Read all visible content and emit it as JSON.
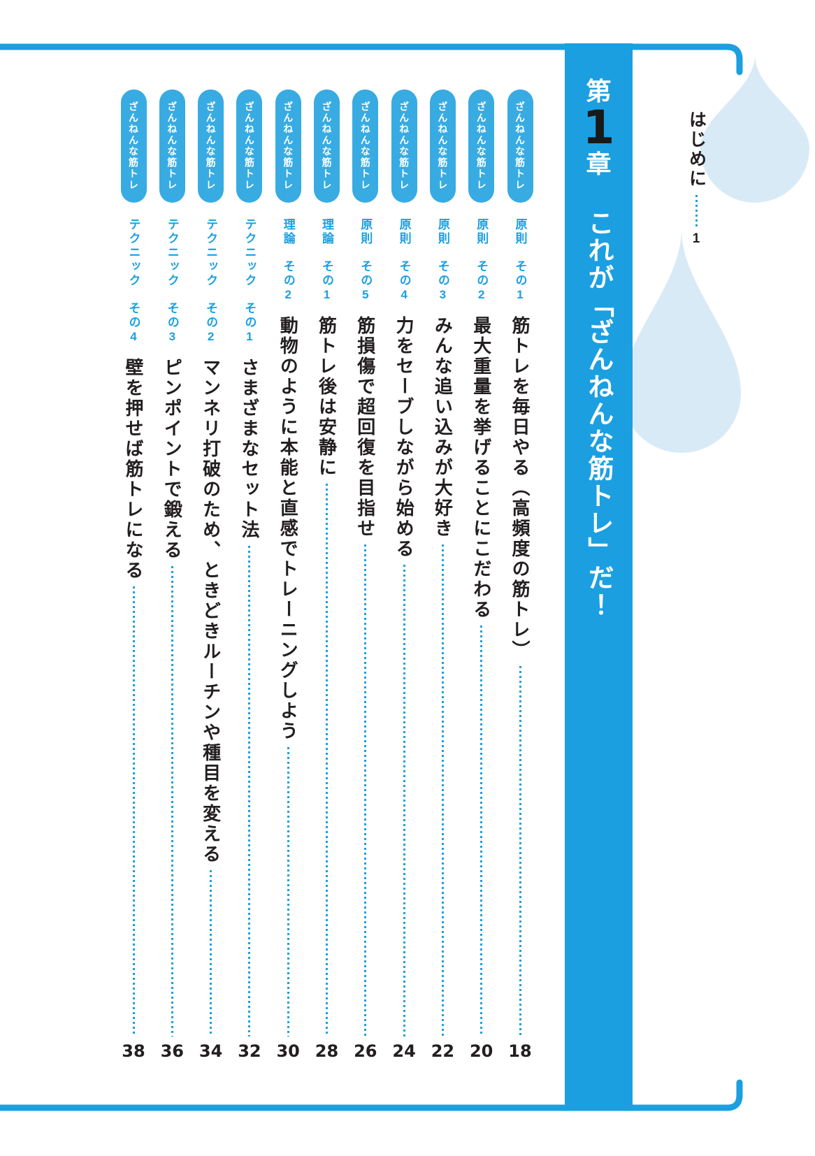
{
  "colors": {
    "accent_blue": "#1b9fe0",
    "pill_blue": "#38abe3",
    "drop_light_blue": "#d9eaf7",
    "ink": "#231f20",
    "chapter_number_black": "#191919"
  },
  "chapter": {
    "kanji_prefix": "第",
    "number": "1",
    "kanji_suffix": "章",
    "title": "これが「ざんねんな筋トレ」だ！"
  },
  "intro": {
    "label": "はじめに",
    "page": "1"
  },
  "badge_text": "ざんねんな筋トレ",
  "entries": [
    {
      "label": "原則　その1",
      "title": "筋トレを毎日やる（高頻度の筋トレ）",
      "page": "18"
    },
    {
      "label": "原則　その2",
      "title": "最大重量を挙げることにこだわる",
      "page": "20"
    },
    {
      "label": "原則　その3",
      "title": "みんな追い込みが大好き",
      "page": "22"
    },
    {
      "label": "原則　その4",
      "title": "力をセーブしながら始める",
      "page": "24"
    },
    {
      "label": "原則　その5",
      "title": "筋損傷で超回復を目指せ",
      "page": "26"
    },
    {
      "label": "理論　その1",
      "title": "筋トレ後は安静に",
      "page": "28"
    },
    {
      "label": "理論　その2",
      "title": "動物のように本能と直感でトレーニングしよう",
      "page": "30"
    },
    {
      "label": "テクニック　その1",
      "title": "さまざまなセット法",
      "page": "32"
    },
    {
      "label": "テクニック　その2",
      "title": "マンネリ打破のため、ときどきルーチンや種目を変える",
      "page": "34"
    },
    {
      "label": "テクニック　その3",
      "title": "ピンポイントで鍛える",
      "page": "36"
    },
    {
      "label": "テクニック　その4",
      "title": "壁を押せば筋トレになる",
      "page": "38"
    }
  ],
  "layout_note_visible_page_numbers_order_left_to_right": [
    "38",
    "36",
    "34",
    "32",
    "30",
    "28",
    "26",
    "24",
    "22",
    "20",
    "18"
  ]
}
